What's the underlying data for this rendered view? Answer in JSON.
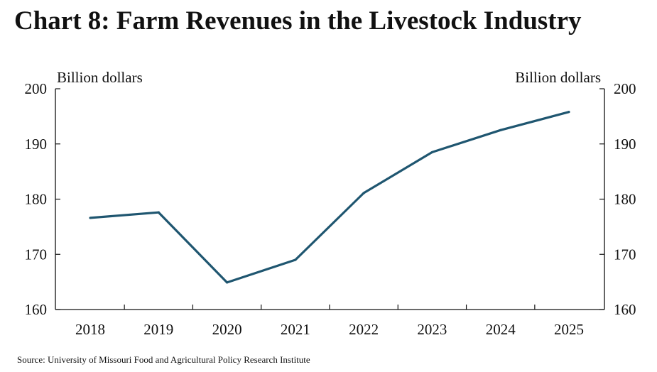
{
  "title": "Chart 8: Farm Revenues in the Livestock Industry",
  "source": "Source: University of Missouri Food and Agricultural Policy Research Institute",
  "colors": {
    "line": "#1f5670",
    "axis": "#111111"
  },
  "chart_data": {
    "type": "line",
    "title": "Chart 8: Farm Revenues in the Livestock Industry",
    "x": [
      "2018",
      "2019",
      "2020",
      "2021",
      "2022",
      "2023",
      "2024",
      "2025"
    ],
    "series": [
      {
        "values": [
          176.6,
          177.6,
          164.9,
          169.0,
          181.1,
          188.5,
          192.5,
          195.8
        ]
      }
    ],
    "ylabel_left": "Billion dollars",
    "ylabel_right": "Billion dollars",
    "ylim": [
      160,
      200
    ],
    "yticks": [
      160,
      170,
      180,
      190,
      200
    ],
    "grid": false,
    "legend": "none"
  }
}
